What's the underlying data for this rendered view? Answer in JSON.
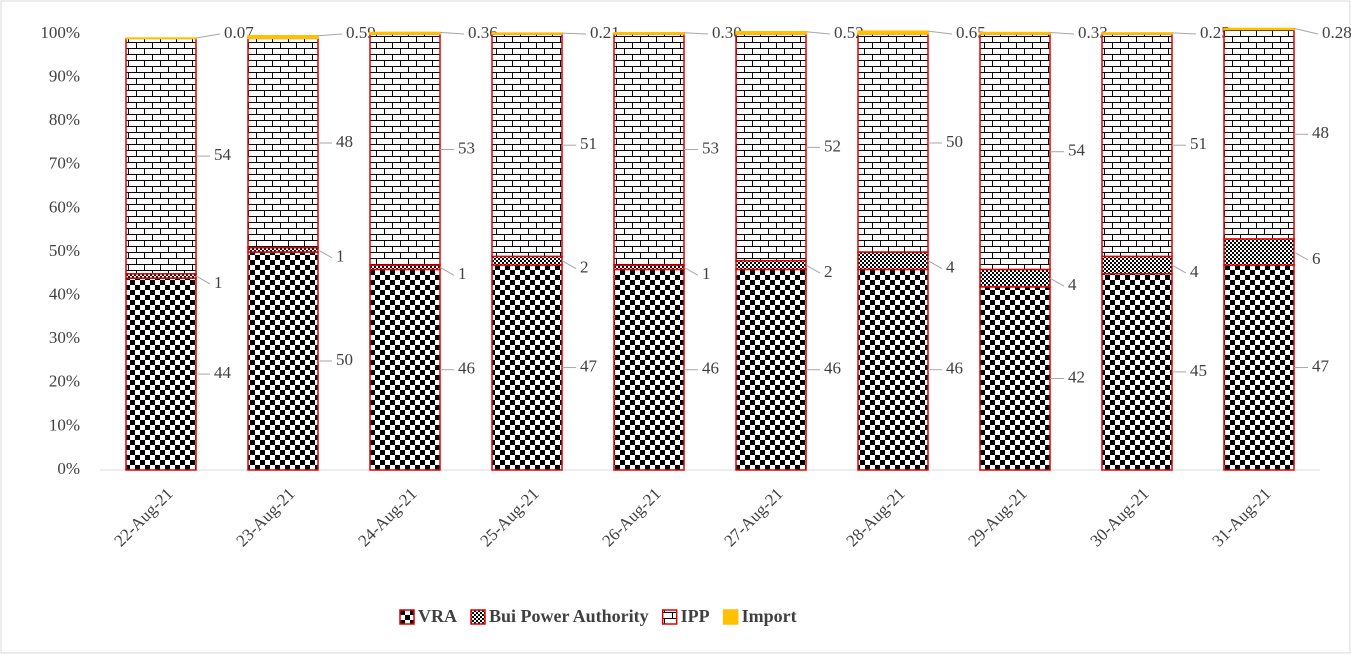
{
  "chart_data": {
    "type": "stacked_bar",
    "categories": [
      "22-Aug-21",
      "23-Aug-21",
      "24-Aug-21",
      "25-Aug-21",
      "26-Aug-21",
      "27-Aug-21",
      "28-Aug-21",
      "29-Aug-21",
      "30-Aug-21",
      "31-Aug-21"
    ],
    "series": [
      {
        "name": "VRA",
        "color": "#000000",
        "pattern": "checker",
        "values": [
          44,
          50,
          46,
          47,
          46,
          46,
          46,
          42,
          45,
          47
        ]
      },
      {
        "name": "Bui Power Authority",
        "color": "#000000",
        "pattern": "finechecker",
        "values": [
          1,
          1,
          1,
          2,
          1,
          2,
          4,
          4,
          4,
          6
        ]
      },
      {
        "name": "IPP",
        "color": "#000000",
        "pattern": "brick",
        "values": [
          54,
          48,
          53,
          51,
          53,
          52,
          50,
          54,
          51,
          48
        ]
      },
      {
        "name": "Import",
        "color": "#ffc000",
        "pattern": "solid",
        "values": [
          0.07,
          0.59,
          0.36,
          0.21,
          0.3,
          0.52,
          0.65,
          0.33,
          0.25,
          0.28
        ],
        "value_labels": [
          "0.07",
          "0.59",
          "0.36",
          "0.21",
          "0.30",
          "0.52",
          "0.65",
          "0.33",
          "0.25",
          "0.28"
        ]
      }
    ],
    "ylim": [
      0,
      100
    ],
    "yticks": [
      {
        "value": 0,
        "label": "0%"
      },
      {
        "value": 10,
        "label": "10%"
      },
      {
        "value": 20,
        "label": "20%"
      },
      {
        "value": 30,
        "label": "30%"
      },
      {
        "value": 40,
        "label": "40%"
      },
      {
        "value": 50,
        "label": "50%"
      },
      {
        "value": 60,
        "label": "60%"
      },
      {
        "value": 70,
        "label": "70%"
      },
      {
        "value": 80,
        "label": "80%"
      },
      {
        "value": 90,
        "label": "90%"
      },
      {
        "value": 100,
        "label": "100%"
      }
    ],
    "legend": "bottom"
  }
}
